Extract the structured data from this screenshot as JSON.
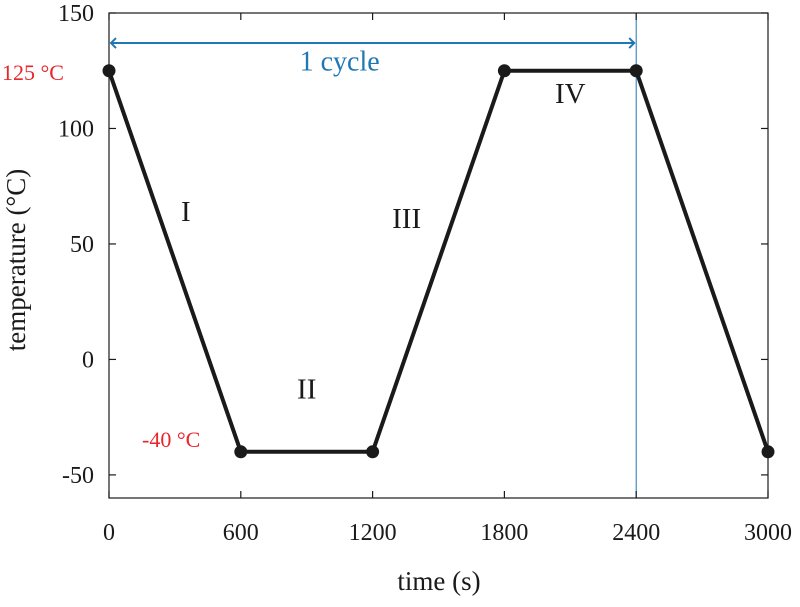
{
  "chart_data": {
    "type": "line",
    "xlabel": "time (s)",
    "ylabel": "temperature (°C)",
    "xlim": [
      0,
      3000
    ],
    "ylim": [
      -60,
      150
    ],
    "xticks": [
      0,
      600,
      1200,
      1800,
      2400,
      3000
    ],
    "yticks": [
      -50,
      0,
      50,
      100,
      150
    ],
    "xtick_labels": [
      "0",
      "600",
      "1200",
      "1800",
      "2400",
      "3000"
    ],
    "ytick_labels": [
      "-50",
      "0",
      "50",
      "100",
      "150"
    ],
    "grid": false,
    "series": [
      {
        "x": [
          0,
          600,
          1200,
          1800,
          2400,
          3000
        ],
        "y": [
          125,
          -40,
          -40,
          125,
          125,
          -40
        ],
        "color": "#1a1a1a"
      }
    ],
    "annotations": {
      "high_temp_label": "125 °C",
      "low_temp_label": "-40 °C",
      "cycle_label": "1 cycle",
      "cycle_span": [
        0,
        2400
      ],
      "cycle_arrow_y": 137,
      "cycle_label_x": 1050,
      "cycle_label_y": 125,
      "segment_labels": [
        {
          "text": "I",
          "x": 350,
          "y": 60
        },
        {
          "text": "II",
          "x": 900,
          "y": -17
        },
        {
          "text": "III",
          "x": 1355,
          "y": 57
        },
        {
          "text": "IV",
          "x": 2100,
          "y": 111
        }
      ],
      "vertical_marker_x": 2400,
      "red": "#e8262b",
      "blue": "#1f77b4"
    }
  }
}
